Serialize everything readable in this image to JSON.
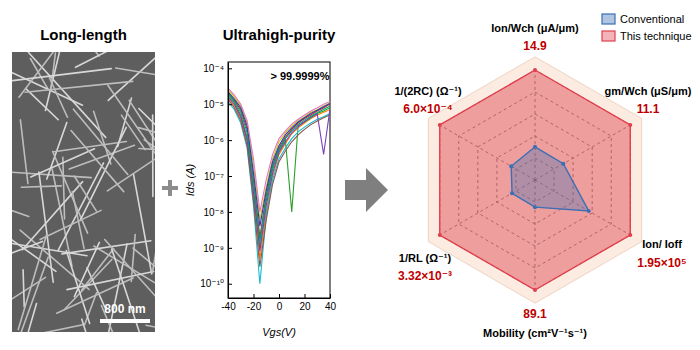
{
  "chart_data": [
    {
      "type": "image",
      "title": "Long-length",
      "annotations": [
        "800 nm"
      ]
    },
    {
      "type": "line",
      "title": "Ultrahigh-purity",
      "annotations": [
        "> 99.9999%"
      ],
      "xlabel": "Vgs(V)",
      "ylabel": "Ids (A)",
      "log": "y",
      "x": [
        -40,
        -35,
        -30,
        -25,
        -20,
        -15,
        -10,
        -5,
        0,
        5,
        10,
        15,
        20,
        25,
        30,
        35,
        40
      ],
      "xlim": [
        -40,
        40
      ],
      "xticks": [
        -40,
        -20,
        0,
        20,
        40
      ],
      "ylim": [
        4e-11,
        0.00015
      ],
      "yticks": [
        {
          "value": 1e-10,
          "label": "10⁻¹⁰"
        },
        {
          "value": 1e-09,
          "label": "10⁻⁹"
        },
        {
          "value": 1e-08,
          "label": "10⁻⁸"
        },
        {
          "value": 1e-07,
          "label": "10⁻⁷"
        },
        {
          "value": 1e-06,
          "label": "10⁻⁶"
        },
        {
          "value": 1e-05,
          "label": "10⁻⁵"
        },
        {
          "value": 0.0001,
          "label": "10⁻⁴"
        }
      ],
      "series": [
        {
          "color": "#e41a1c",
          "values": [
            2e-05,
            1.3e-05,
            7e-06,
            2e-06,
            8e-08,
            2e-09,
            3e-08,
            2e-07,
            6e-07,
            1.2e-06,
            2e-06,
            3e-06,
            4e-06,
            5e-06,
            6.5e-06,
            8e-06,
            1e-05
          ]
        },
        {
          "color": "#ff7f00",
          "values": [
            1.5e-05,
            9e-06,
            4e-06,
            9e-07,
            3e-08,
            5e-10,
            1e-08,
            1e-07,
            4e-07,
            8e-07,
            1.5e-06,
            2.2e-06,
            3e-06,
            4e-06,
            5e-06,
            6e-06,
            7e-06
          ]
        },
        {
          "color": "#d4c400",
          "values": [
            2.5e-05,
            1.6e-05,
            9e-06,
            3e-06,
            2e-07,
            6e-09,
            5e-08,
            3e-07,
            9e-07,
            1.6e-06,
            2.5e-06,
            3.5e-06,
            4.5e-06,
            6e-06,
            7e-06,
            9e-06,
            1.1e-05
          ]
        },
        {
          "color": "#2ca02c",
          "values": [
            1.8e-05,
            1.1e-05,
            5e-06,
            1.2e-06,
            4e-08,
            1e-09,
            2e-08,
            1.5e-07,
            5e-07,
            1e-06,
            1e-08,
            2.5e-06,
            3.2e-06,
            4.2e-06,
            5.5e-06,
            6.5e-06,
            8e-06
          ]
        },
        {
          "color": "#17becf",
          "values": [
            1.2e-05,
            7e-06,
            3e-06,
            6e-07,
            1.5e-08,
            1e-10,
            8e-09,
            8e-08,
            3e-07,
            6e-07,
            1.1e-06,
            1.7e-06,
            2.3e-06,
            3e-06,
            3.8e-06,
            4.5e-06,
            5.5e-06
          ]
        },
        {
          "color": "#1f3fbf",
          "values": [
            2.2e-05,
            1.4e-05,
            8e-06,
            2.5e-06,
            1.2e-07,
            4e-09,
            4e-08,
            2.5e-07,
            7e-07,
            1.4e-06,
            2.2e-06,
            3.2e-06,
            4.2e-06,
            5.5e-06,
            6.8e-06,
            8.5e-06,
            1.05e-05
          ]
        },
        {
          "color": "#7b3fbf",
          "values": [
            1.6e-05,
            1e-05,
            4.5e-06,
            1e-06,
            3.5e-08,
            8e-10,
            1.5e-08,
            1.2e-07,
            4.5e-07,
            9e-07,
            1.6e-06,
            2.4e-06,
            3.3e-06,
            4.3e-06,
            5.3e-06,
            4e-07,
            7.5e-06
          ]
        },
        {
          "color": "#e377c2",
          "values": [
            2.8e-05,
            1.8e-05,
            1e-05,
            3.5e-06,
            3e-07,
            1e-08,
            8e-08,
            4e-07,
            1.1e-06,
            1.8e-06,
            2.8e-06,
            3.8e-06,
            5e-06,
            6.5e-06,
            8e-06,
            1e-05,
            1.2e-05
          ]
        },
        {
          "color": "#8c564b",
          "values": [
            1.4e-05,
            8e-06,
            3.5e-06,
            7e-07,
            2e-08,
            3e-10,
            6e-09,
            6e-08,
            2.5e-07,
            5e-07,
            9e-07,
            1.4e-06,
            2e-06,
            2.7e-06,
            3.4e-06,
            4.2e-06,
            5e-06
          ]
        },
        {
          "color": "#009e73",
          "values": [
            2e-05,
            1.2e-05,
            6e-06,
            1.6e-06,
            6e-08,
            1.5e-09,
            2.5e-08,
            1.8e-07,
            5.5e-07,
            1.1e-06,
            1.8e-06,
            2.7e-06,
            3.6e-06,
            4.6e-06,
            5.8e-06,
            7.2e-06,
            8.8e-06
          ]
        }
      ]
    },
    {
      "type": "radar",
      "categories": [
        "Ion/Wch (μA/μm)",
        "gm/Wch (μS/μm)",
        "Ion/ Ioff",
        "Mobility (cm²V⁻¹s⁻¹)",
        "1/RL (Ω⁻¹)",
        "1/(2RC) (Ω⁻¹)"
      ],
      "series": [
        {
          "name": "Conventional",
          "color": "#3a6fb5",
          "values": [
            4.5,
            3.3,
            110000,
            22,
            0.0008,
            0.00015
          ]
        },
        {
          "name": "This technique",
          "color": "#e0404e",
          "values": [
            14.9,
            11.1,
            195000,
            89.1,
            0.00332,
            0.0006
          ],
          "value_labels": [
            "14.9",
            "11.1",
            "1.95×10⁵",
            "89.1",
            "3.32×10⁻³",
            "6.0×10⁻⁴"
          ]
        }
      ],
      "rlims": [
        [
          0,
          14.9
        ],
        [
          0,
          11.1
        ],
        [
          0,
          195000
        ],
        [
          0,
          89.1
        ],
        [
          0,
          0.00332
        ],
        [
          0,
          0.0006
        ]
      ],
      "rticks": [
        0.2,
        0.4,
        0.6,
        0.8,
        1
      ],
      "grid": true,
      "legend": "upper right",
      "data_labels": true
    }
  ]
}
